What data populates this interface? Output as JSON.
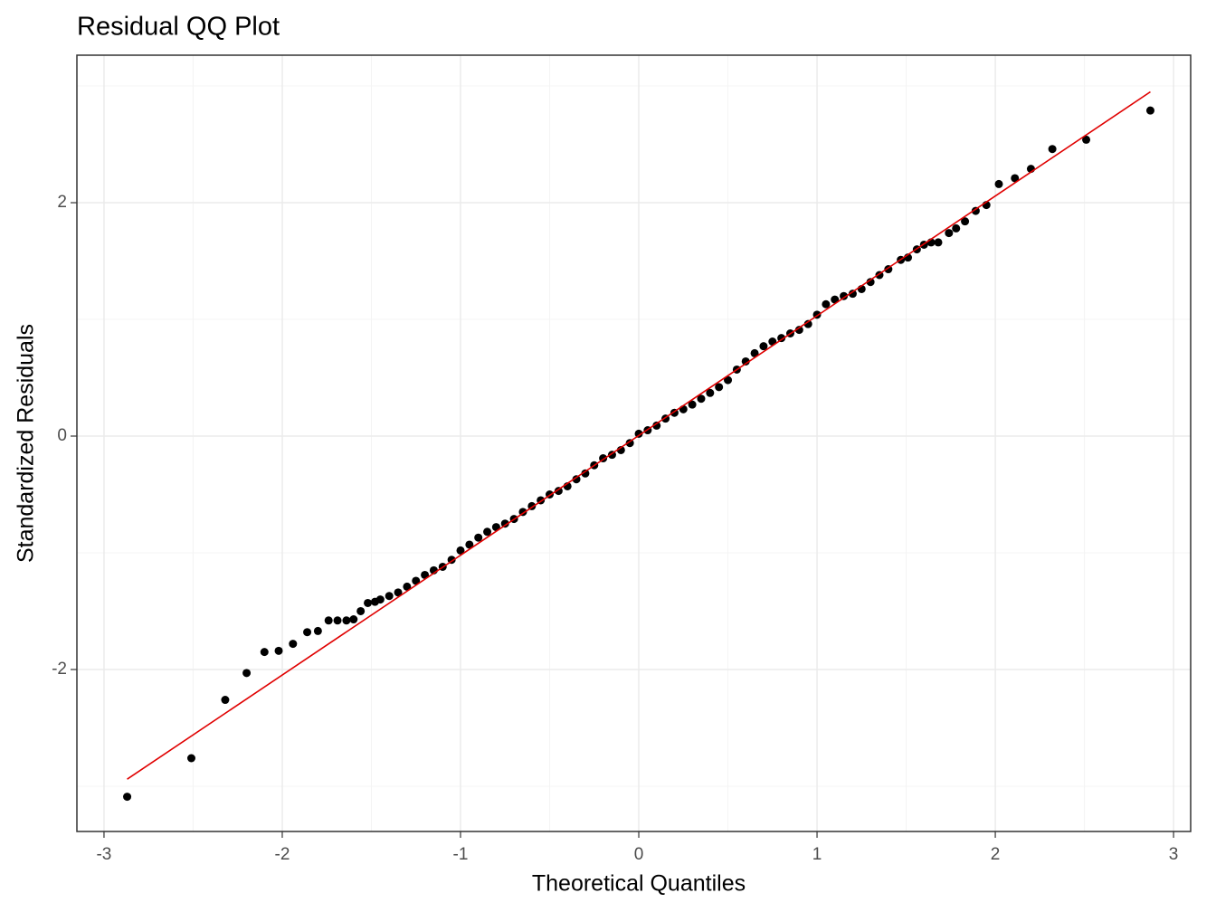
{
  "chart_data": {
    "type": "scatter",
    "title": "Residual QQ Plot",
    "x_label": "Theoretical Quantiles",
    "y_label": "Standardized Residuals",
    "x": [
      -2.87,
      -2.51,
      -2.32,
      -2.2,
      -2.1,
      -2.02,
      -1.94,
      -1.86,
      -1.8,
      -1.74,
      -1.69,
      -1.64,
      -1.6,
      -1.56,
      -1.52,
      -1.48,
      -1.45,
      -1.4,
      -1.35,
      -1.3,
      -1.25,
      -1.2,
      -1.15,
      -1.1,
      -1.05,
      -1.0,
      -0.95,
      -0.9,
      -0.85,
      -0.8,
      -0.75,
      -0.7,
      -0.65,
      -0.6,
      -0.55,
      -0.5,
      -0.45,
      -0.4,
      -0.35,
      -0.3,
      -0.25,
      -0.2,
      -0.15,
      -0.1,
      -0.05,
      0,
      0.05,
      0.1,
      0.15,
      0.2,
      0.25,
      0.3,
      0.35,
      0.4,
      0.45,
      0.5,
      0.55,
      0.6,
      0.65,
      0.7,
      0.75,
      0.8,
      0.85,
      0.9,
      0.95,
      1.0,
      1.05,
      1.1,
      1.15,
      1.2,
      1.25,
      1.3,
      1.35,
      1.4,
      1.47,
      1.51,
      1.56,
      1.6,
      1.64,
      1.68,
      1.74,
      1.78,
      1.83,
      1.89,
      1.95,
      2.02,
      2.11,
      2.2,
      2.32,
      2.51,
      2.87
    ],
    "y": [
      -3.09,
      -2.76,
      -2.26,
      -2.03,
      -1.85,
      -1.84,
      -1.78,
      -1.68,
      -1.67,
      -1.58,
      -1.58,
      -1.58,
      -1.57,
      -1.5,
      -1.43,
      -1.42,
      -1.4,
      -1.37,
      -1.34,
      -1.29,
      -1.24,
      -1.19,
      -1.15,
      -1.12,
      -1.06,
      -0.98,
      -0.93,
      -0.87,
      -0.82,
      -0.78,
      -0.75,
      -0.71,
      -0.65,
      -0.6,
      -0.55,
      -0.5,
      -0.47,
      -0.43,
      -0.37,
      -0.32,
      -0.25,
      -0.19,
      -0.16,
      -0.12,
      -0.06,
      0.02,
      0.05,
      0.09,
      0.15,
      0.2,
      0.23,
      0.27,
      0.32,
      0.37,
      0.42,
      0.48,
      0.57,
      0.64,
      0.71,
      0.77,
      0.81,
      0.84,
      0.88,
      0.91,
      0.96,
      1.04,
      1.13,
      1.17,
      1.2,
      1.22,
      1.26,
      1.32,
      1.38,
      1.43,
      1.51,
      1.53,
      1.6,
      1.64,
      1.66,
      1.66,
      1.74,
      1.78,
      1.84,
      1.93,
      1.98,
      2.16,
      2.21,
      2.29,
      2.46,
      2.54,
      2.79
    ],
    "color": "#000000",
    "reference_line": {
      "x": [
        -2.87,
        2.87
      ],
      "y": [
        -2.94,
        2.95
      ],
      "color": "#e00000"
    },
    "xlim": [
      -3.152,
      3.096
    ],
    "ylim": [
      -3.388,
      3.264
    ],
    "xticks": [
      -3,
      -2,
      -1,
      0,
      1,
      2,
      3
    ],
    "yticks": [
      -2,
      0,
      2
    ],
    "x_minor_ticks": [
      -2.5,
      -1.5,
      -0.5,
      0.5,
      1.5,
      2.5
    ],
    "y_minor_ticks": [
      -3,
      -1,
      1,
      3
    ],
    "grid": true
  }
}
